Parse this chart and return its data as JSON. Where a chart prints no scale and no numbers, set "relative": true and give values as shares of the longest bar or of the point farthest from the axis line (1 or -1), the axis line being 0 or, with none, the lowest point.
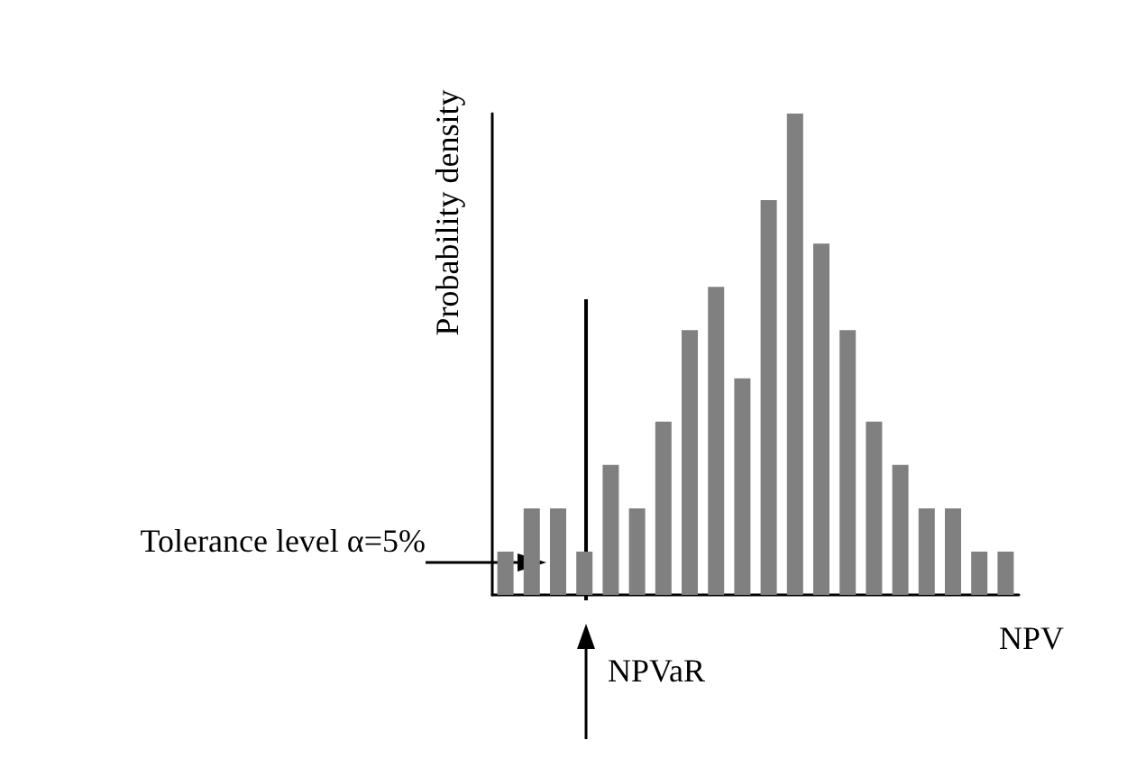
{
  "chart_data": {
    "type": "bar",
    "xlabel": "NPV",
    "ylabel": "Probability density",
    "relative": true,
    "color": "#808080",
    "categories": [
      null,
      null,
      null,
      null,
      null,
      null,
      null,
      null,
      null,
      null,
      null,
      null,
      null,
      null,
      null,
      null,
      null,
      null,
      null,
      null
    ],
    "values": [
      0.09,
      0.18,
      0.18,
      0.09,
      0.27,
      0.18,
      0.36,
      0.55,
      0.64,
      0.45,
      0.82,
      1,
      0.73,
      0.55,
      0.36,
      0.27,
      0.18,
      0.18,
      0.09,
      0.09
    ],
    "grid": false,
    "ref_lines": [
      {
        "axis": "x",
        "label": "NPVaR",
        "color": "#000000"
      }
    ],
    "annotations": [
      "Tolerance level α=5%"
    ]
  }
}
